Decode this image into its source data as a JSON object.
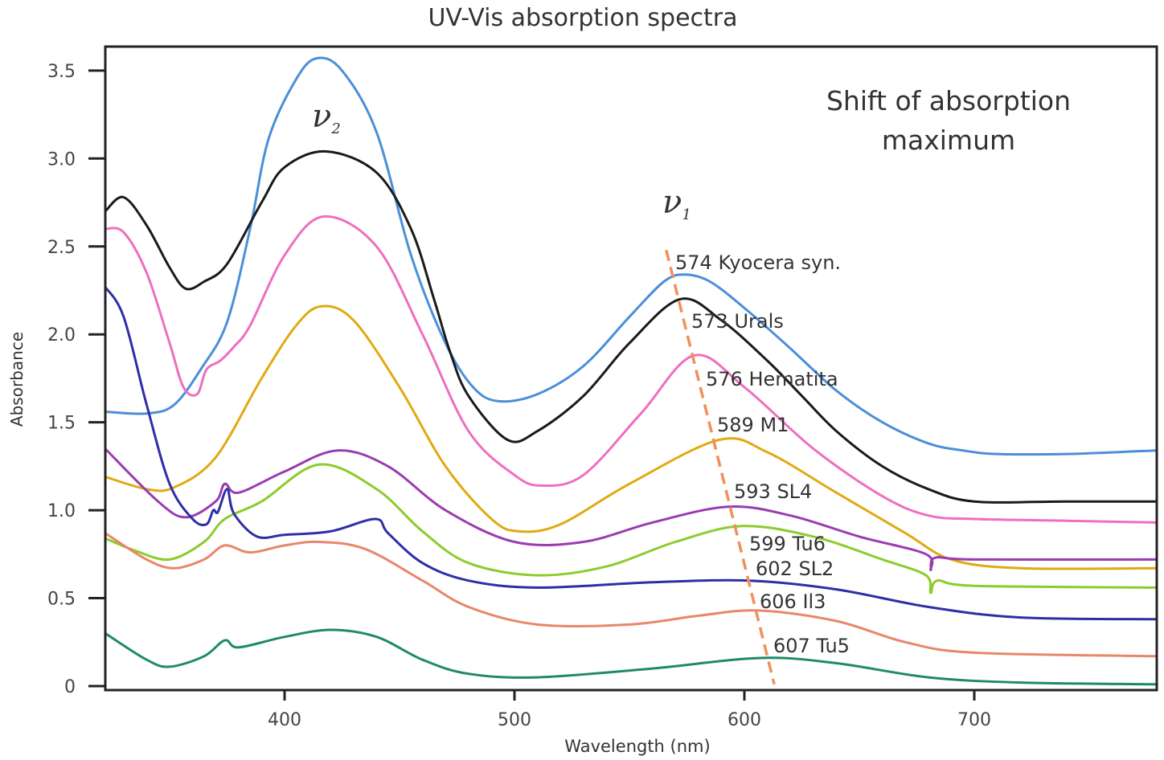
{
  "chart_data": {
    "type": "line",
    "title": "UV-Vis absorption spectra",
    "xlabel": "Wavelength (nm)",
    "ylabel": "Absorbance",
    "xlim": [
      322,
      779
    ],
    "ylim": [
      -0.02,
      3.63
    ],
    "xticks": [
      400,
      500,
      600,
      700
    ],
    "yticks": [
      0,
      0.5,
      1.0,
      1.5,
      2.0,
      2.5,
      3.0,
      3.5
    ],
    "ytick_labels": [
      "0",
      "0.5",
      "1.0",
      "1.5",
      "2.0",
      "2.5",
      "3.0",
      "3.5"
    ],
    "grid": false,
    "annotations": {
      "shift_text": [
        "Shift of absorption",
        "maximum"
      ],
      "nu2": "ν",
      "nu2_sub": "2",
      "nu1": "ν",
      "nu1_sub": "1",
      "shift_line": {
        "x": [
          566,
          613
        ],
        "y": [
          2.48,
          0.01
        ],
        "color": "#f0905a",
        "style": "dashed"
      }
    },
    "series": [
      {
        "name": "574 Kyocera syn.",
        "color": "#4a8fd8",
        "x": [
          322,
          340,
          352,
          364,
          375,
          385,
          393,
          405,
          414,
          425,
          440,
          455,
          470,
          482,
          493,
          510,
          530,
          550,
          565,
          574,
          585,
          600,
          620,
          640,
          660,
          680,
          695,
          710,
          740,
          779
        ],
        "y": [
          1.56,
          1.55,
          1.6,
          1.81,
          2.07,
          2.6,
          3.11,
          3.45,
          3.57,
          3.5,
          3.15,
          2.45,
          1.95,
          1.7,
          1.62,
          1.66,
          1.82,
          2.1,
          2.3,
          2.34,
          2.3,
          2.15,
          1.92,
          1.68,
          1.5,
          1.38,
          1.34,
          1.32,
          1.32,
          1.34
        ]
      },
      {
        "name": "573 Urals",
        "color": "#1a1a1a",
        "x": [
          322,
          330,
          340,
          350,
          357,
          365,
          375,
          390,
          400,
          418,
          440,
          455,
          465,
          472,
          480,
          497,
          510,
          530,
          550,
          572,
          590,
          610,
          625,
          640,
          660,
          680,
          700,
          740,
          779
        ],
        "y": [
          2.7,
          2.78,
          2.62,
          2.38,
          2.26,
          2.3,
          2.4,
          2.75,
          2.95,
          3.04,
          2.92,
          2.6,
          2.2,
          1.9,
          1.65,
          1.4,
          1.45,
          1.65,
          1.95,
          2.2,
          2.08,
          1.85,
          1.65,
          1.45,
          1.25,
          1.12,
          1.05,
          1.05,
          1.05
        ]
      },
      {
        "name": "576 Hematita",
        "color": "#ee6fbf",
        "x": [
          322,
          330,
          340,
          350,
          356,
          362,
          366,
          372,
          378,
          385,
          400,
          417,
          440,
          460,
          480,
          500,
          512,
          530,
          555,
          578,
          600,
          630,
          660,
          680,
          700,
          740,
          779
        ],
        "y": [
          2.6,
          2.58,
          2.35,
          1.95,
          1.7,
          1.66,
          1.8,
          1.85,
          1.93,
          2.05,
          2.45,
          2.67,
          2.5,
          2.0,
          1.45,
          1.2,
          1.14,
          1.2,
          1.55,
          1.88,
          1.7,
          1.35,
          1.08,
          0.97,
          0.95,
          0.94,
          0.93
        ]
      },
      {
        "name": "589 M1",
        "color": "#e0aa12",
        "x": [
          322,
          340,
          352,
          370,
          390,
          405,
          416,
          430,
          450,
          470,
          490,
          502,
          520,
          550,
          589,
          610,
          640,
          670,
          690,
          720,
          779
        ],
        "y": [
          1.19,
          1.12,
          1.13,
          1.3,
          1.75,
          2.05,
          2.16,
          2.08,
          1.7,
          1.25,
          0.95,
          0.88,
          0.92,
          1.15,
          1.4,
          1.33,
          1.1,
          0.87,
          0.72,
          0.67,
          0.67
        ]
      },
      {
        "name": "593 SL4",
        "color": "#9a3cb0",
        "x": [
          322,
          345,
          357,
          370,
          374,
          380,
          400,
          423,
          445,
          470,
          500,
          530,
          560,
          593,
          620,
          650,
          679,
          681,
          683,
          700,
          779
        ],
        "y": [
          1.35,
          1.05,
          0.96,
          1.05,
          1.15,
          1.1,
          1.22,
          1.34,
          1.25,
          1.0,
          0.82,
          0.82,
          0.93,
          1.02,
          0.97,
          0.85,
          0.75,
          0.66,
          0.73,
          0.72,
          0.72
        ]
      },
      {
        "name": "599 Tu6",
        "color": "#8ccc2c",
        "x": [
          322,
          335,
          350,
          365,
          374,
          390,
          415,
          440,
          460,
          480,
          510,
          540,
          570,
          599,
          630,
          660,
          679,
          681,
          684,
          700,
          779
        ],
        "y": [
          0.84,
          0.77,
          0.72,
          0.82,
          0.95,
          1.05,
          1.26,
          1.12,
          0.88,
          0.7,
          0.63,
          0.68,
          0.82,
          0.91,
          0.85,
          0.72,
          0.63,
          0.53,
          0.6,
          0.57,
          0.56
        ]
      },
      {
        "name": "602 SL2",
        "color": "#2e2ea8",
        "x": [
          322,
          330,
          340,
          350,
          360,
          366,
          369,
          371,
          375,
          378,
          388,
          400,
          420,
          439.5,
          445,
          460,
          480,
          510,
          560,
          602,
          640,
          680,
          720,
          779
        ],
        "y": [
          2.27,
          2.1,
          1.6,
          1.15,
          0.95,
          0.92,
          1.0,
          0.99,
          1.12,
          0.98,
          0.85,
          0.86,
          0.88,
          0.95,
          0.87,
          0.7,
          0.6,
          0.56,
          0.59,
          0.6,
          0.55,
          0.45,
          0.39,
          0.38
        ]
      },
      {
        "name": "606 Il3",
        "color": "#e8876a",
        "x": [
          322,
          340,
          352,
          365,
          374,
          385,
          400,
          415,
          435,
          460,
          480,
          510,
          550,
          580,
          606,
          640,
          670,
          700,
          779
        ],
        "y": [
          0.87,
          0.72,
          0.67,
          0.72,
          0.8,
          0.76,
          0.8,
          0.82,
          0.78,
          0.6,
          0.45,
          0.35,
          0.35,
          0.4,
          0.43,
          0.37,
          0.25,
          0.19,
          0.17
        ]
      },
      {
        "name": "607 Tu5",
        "color": "#1f8a6a",
        "x": [
          322,
          340,
          350,
          365,
          374,
          380,
          400,
          420,
          440,
          460,
          480,
          510,
          560,
          607,
          640,
          680,
          720,
          779
        ],
        "y": [
          0.3,
          0.15,
          0.11,
          0.17,
          0.26,
          0.22,
          0.28,
          0.32,
          0.28,
          0.15,
          0.07,
          0.05,
          0.1,
          0.16,
          0.13,
          0.05,
          0.02,
          0.01
        ]
      }
    ]
  }
}
